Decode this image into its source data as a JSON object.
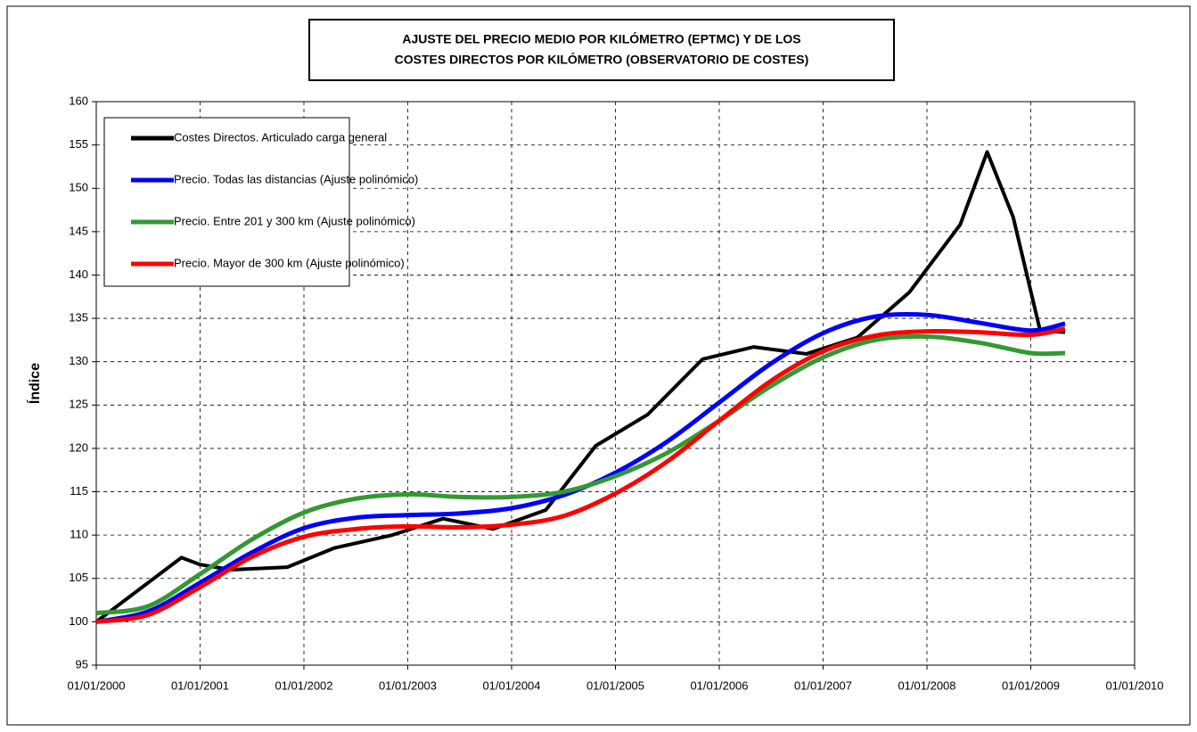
{
  "chart_data": {
    "type": "line",
    "title": [
      "AJUSTE DEL PRECIO MEDIO POR KILÓMETRO (EPTMC) Y DE LOS",
      "COSTES DIRECTOS POR KILÓMETRO (OBSERVATORIO DE COSTES)"
    ],
    "y_label": "Índice",
    "xlim": [
      2000,
      2010
    ],
    "xticks": [
      {
        "value": 2000,
        "label": "01/01/2000"
      },
      {
        "value": 2001,
        "label": "01/01/2001"
      },
      {
        "value": 2002,
        "label": "01/01/2002"
      },
      {
        "value": 2003,
        "label": "01/01/2003"
      },
      {
        "value": 2004,
        "label": "01/01/2004"
      },
      {
        "value": 2005,
        "label": "01/01/2005"
      },
      {
        "value": 2006,
        "label": "01/01/2006"
      },
      {
        "value": 2007,
        "label": "01/01/2007"
      },
      {
        "value": 2008,
        "label": "01/01/2008"
      },
      {
        "value": 2009,
        "label": "01/01/2009"
      },
      {
        "value": 2010,
        "label": "01/01/2010"
      }
    ],
    "ylim": [
      95,
      160
    ],
    "yticks": [
      95,
      100,
      105,
      110,
      115,
      120,
      125,
      130,
      135,
      140,
      145,
      150,
      155,
      160
    ],
    "grid": true,
    "legend": "top-left",
    "series": [
      {
        "name": "Costes Directos. Articulado carga general",
        "color": "#000000",
        "smooth": false,
        "x": [
          2000,
          2000.82,
          2001.0,
          2001.3,
          2001.84,
          2002.29,
          2002.85,
          2003.34,
          2003.82,
          2004.33,
          2004.81,
          2005.31,
          2005.84,
          2006.33,
          2006.84,
          2007.33,
          2007.83,
          2008.32,
          2008.58,
          2008.83,
          2009.09,
          2009.33
        ],
        "values": [
          100,
          107.4,
          106.6,
          106.0,
          106.3,
          108.5,
          110,
          111.9,
          110.7,
          112.9,
          120.3,
          123.9,
          130.3,
          131.7,
          130.9,
          132.8,
          138,
          145.8,
          154.2,
          146.7,
          133.6,
          133.4
        ]
      },
      {
        "name": "Precio. Todas las distancias (Ajuste polinómico)",
        "color": "#0000ff",
        "smooth": true,
        "x": [
          2000,
          2000.5,
          2001,
          2001.5,
          2002,
          2002.5,
          2003,
          2003.5,
          2004,
          2004.5,
          2005,
          2005.5,
          2006,
          2006.5,
          2007,
          2007.5,
          2008,
          2008.5,
          2009,
          2009.33
        ],
        "values": [
          100,
          101.2,
          104.5,
          108,
          110.8,
          112,
          112.3,
          112.5,
          113.1,
          114.6,
          117.2,
          120.8,
          125.3,
          129.8,
          133.3,
          135.2,
          135.4,
          134.5,
          133.6,
          134.4
        ]
      },
      {
        "name": "Precio. Entre 201 y 300 km (Ajuste polinómico)",
        "color": "#339933",
        "smooth": true,
        "x": [
          2000,
          2000.5,
          2001,
          2001.5,
          2002,
          2002.5,
          2003,
          2003.5,
          2004,
          2004.5,
          2005,
          2005.5,
          2006,
          2006.5,
          2007,
          2007.5,
          2008,
          2008.5,
          2009,
          2009.33
        ],
        "values": [
          101,
          101.8,
          105.5,
          109.5,
          112.6,
          114.2,
          114.7,
          114.4,
          114.4,
          115,
          116.8,
          119.5,
          123.2,
          127.2,
          130.5,
          132.5,
          132.9,
          132.2,
          131,
          131
        ]
      },
      {
        "name": "Precio. Mayor de 300 km (Ajuste polinómico)",
        "color": "#ff0000",
        "smooth": true,
        "x": [
          2000,
          2000.5,
          2001,
          2001.5,
          2002,
          2002.5,
          2003,
          2003.5,
          2004,
          2004.5,
          2005,
          2005.5,
          2006,
          2006.5,
          2007,
          2007.5,
          2008,
          2008.5,
          2009,
          2009.33
        ],
        "values": [
          100,
          100.8,
          104,
          107.5,
          109.8,
          110.7,
          111,
          110.9,
          111.2,
          112.2,
          114.8,
          118.5,
          123.2,
          127.8,
          131.2,
          133,
          133.5,
          133.4,
          133.1,
          133.8
        ]
      }
    ]
  }
}
